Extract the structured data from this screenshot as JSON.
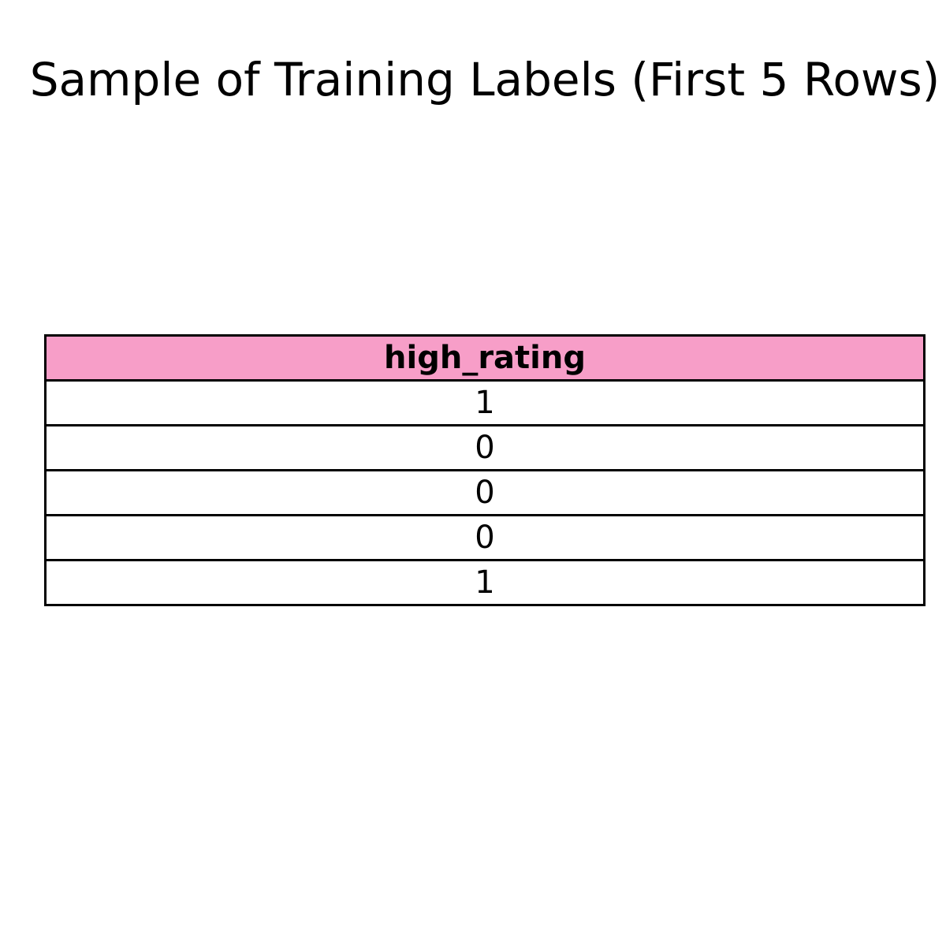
{
  "chart_data": {
    "type": "table",
    "title": "Sample of Training Labels (First 5 Rows)",
    "columns": [
      "high_rating"
    ],
    "rows": [
      [
        "1"
      ],
      [
        "0"
      ],
      [
        "0"
      ],
      [
        "0"
      ],
      [
        "1"
      ]
    ],
    "header_color": "#f79ec8",
    "border_color": "#000000"
  }
}
